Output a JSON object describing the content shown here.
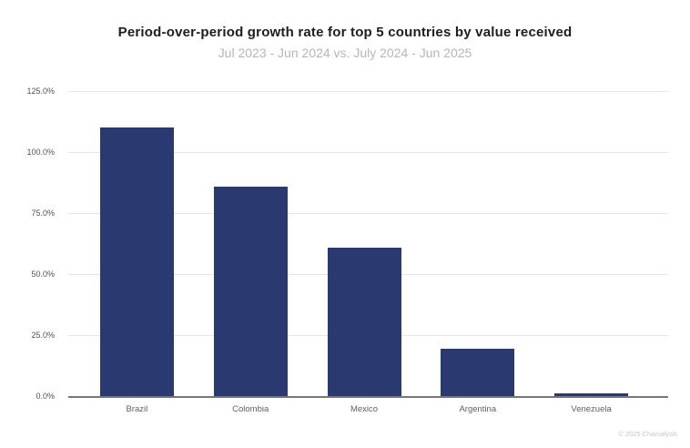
{
  "chart_data": {
    "type": "bar",
    "title": "Period-over-period growth rate for top 5 countries by value received",
    "subtitle": "Jul 2023 - Jun 2024 vs. July 2024 - Jun 2025",
    "categories": [
      "Brazil",
      "Colombia",
      "Mexico",
      "Argentina",
      "Venezuela"
    ],
    "series": [
      {
        "name": "Period-over-period growth rate",
        "values": [
          110.0,
          86.0,
          61.0,
          19.5,
          1.1
        ]
      }
    ],
    "values_unit": "percent",
    "yticks": [
      {
        "value": 125,
        "label": "125.0%"
      },
      {
        "value": 100,
        "label": "100.0%"
      },
      {
        "value": 75,
        "label": "75.0%"
      },
      {
        "value": 50,
        "label": "50.0%"
      },
      {
        "value": 25,
        "label": "25.0%"
      },
      {
        "value": 0,
        "label": "0.0%"
      }
    ],
    "ylim": [
      0,
      125
    ],
    "xlabel": "",
    "ylabel": "",
    "grid": true,
    "legend": "none",
    "colors": {
      "bar": "#2a3a70",
      "gridline": "#e6e6e9",
      "axis_line": "#76777b",
      "title": "#1d1d22",
      "subtitle": "#b5b5bc",
      "tick_label": "#4e5156",
      "category_label": "#5c6066",
      "footer": "#c6c6cc"
    }
  },
  "footer": {
    "copyright": "© 2025 Chainalysis"
  }
}
